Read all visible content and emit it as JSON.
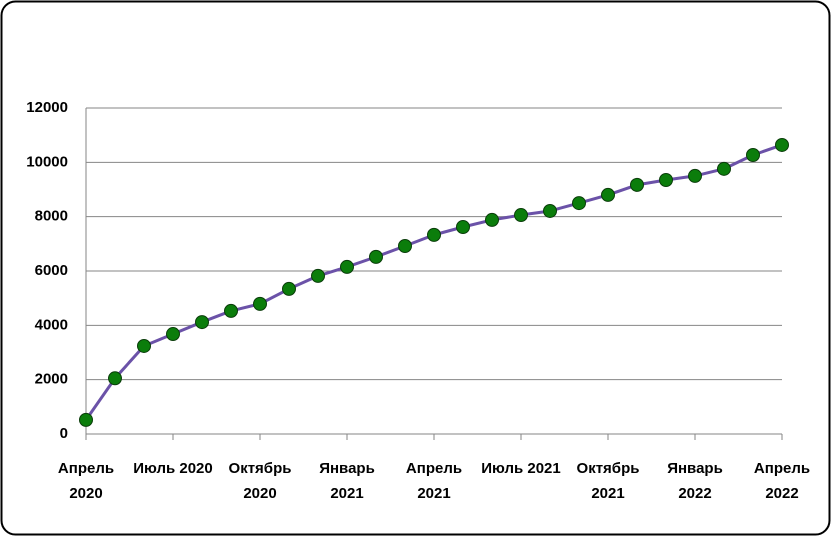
{
  "chart_data": {
    "type": "line",
    "categories": [
      "Апрель 2020",
      null,
      null,
      "Июль 2020",
      null,
      null,
      "Октябрь 2020",
      null,
      null,
      "Январь 2021",
      null,
      null,
      "Апрель 2021",
      null,
      null,
      "Июль 2021",
      null,
      null,
      "Октябрь 2021",
      null,
      null,
      "Январь 2022",
      null,
      null,
      "Апрель 2022"
    ],
    "series": [
      {
        "color": "#6b52a8",
        "marker_color": "#0b7d0b",
        "values": [
          520,
          2050,
          3240,
          3680,
          4120,
          4530,
          4790,
          5340,
          5820,
          6150,
          6520,
          6920,
          7330,
          7620,
          7880,
          8060,
          8210,
          8500,
          8800,
          9170,
          9350,
          9500,
          9760,
          10270,
          10640
        ]
      }
    ],
    "ylim": [
      0,
      12000
    ],
    "yticks": [
      0,
      2000,
      4000,
      6000,
      8000,
      10000,
      12000
    ],
    "grid": true
  }
}
